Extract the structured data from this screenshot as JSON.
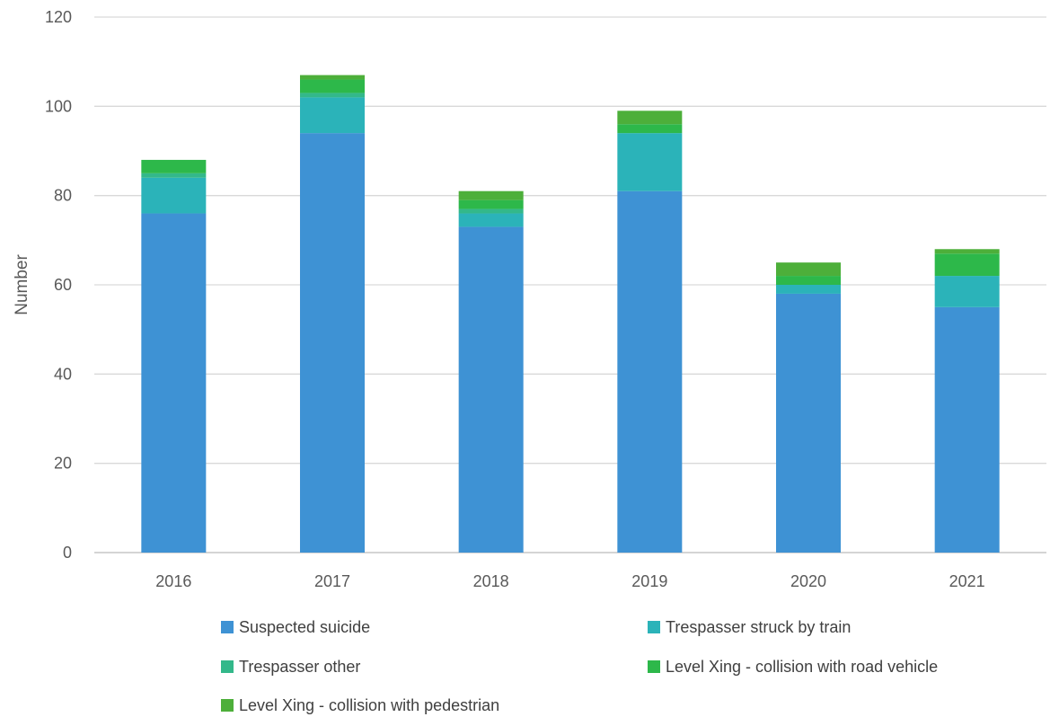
{
  "chart_data": {
    "type": "bar",
    "stacked": true,
    "title": "",
    "xlabel": "",
    "ylabel": "Number",
    "ylim": [
      0,
      120
    ],
    "yticks": [
      0,
      20,
      40,
      60,
      80,
      100,
      120
    ],
    "grid": true,
    "legend_position": "bottom",
    "categories": [
      "2016",
      "2017",
      "2018",
      "2019",
      "2020",
      "2021"
    ],
    "series": [
      {
        "name": "Suspected suicide",
        "color": "#3E92D4",
        "values": [
          76,
          94,
          73,
          81,
          58,
          55
        ]
      },
      {
        "name": "Trespasser struck by train",
        "color": "#2BB3B9",
        "values": [
          8,
          8,
          3,
          13,
          2,
          7
        ]
      },
      {
        "name": "Trespasser other",
        "color": "#33B88A",
        "values": [
          1,
          1,
          1,
          0,
          0,
          0
        ]
      },
      {
        "name": "Level Xing - collision with road vehicle",
        "color": "#2DB84A",
        "values": [
          3,
          3,
          2,
          2,
          2,
          5
        ]
      },
      {
        "name": "Level Xing - collision with pedestrian",
        "color": "#4DAF3A",
        "values": [
          0,
          1,
          2,
          3,
          3,
          1
        ]
      }
    ]
  }
}
